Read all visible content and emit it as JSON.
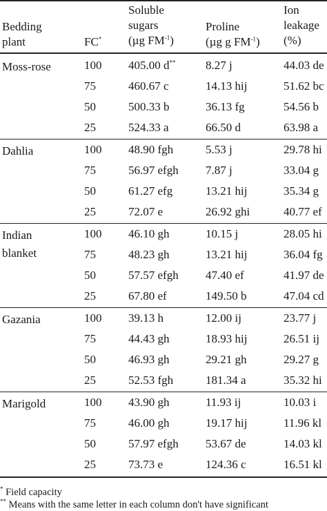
{
  "header": {
    "plant": [
      "Bedding",
      "plant"
    ],
    "fc": "FC",
    "fc_mark": "*",
    "sugars": [
      "Soluble",
      "sugars",
      "(µg FM",
      "-1",
      ")"
    ],
    "proline": [
      "Proline",
      "(µg g FM",
      "-1",
      ")"
    ],
    "ion": [
      "Ion",
      "leakage",
      "(%)"
    ]
  },
  "groups": [
    {
      "plant": [
        "Moss-rose"
      ],
      "rows": [
        {
          "fc": "100",
          "sugars": "405.00 d",
          "sugars_mark": "**",
          "proline": "8.27 j",
          "ion": "44.03 de"
        },
        {
          "fc": "75",
          "sugars": "460.67 c",
          "sugars_mark": "",
          "proline": "14.13 hij",
          "ion": "51.62 bc"
        },
        {
          "fc": "50",
          "sugars": "500.33 b",
          "sugars_mark": "",
          "proline": "36.13 fg",
          "ion": "54.56 b"
        },
        {
          "fc": "25",
          "sugars": "524.33 a",
          "sugars_mark": "",
          "proline": "66.50 d",
          "ion": "63.98 a"
        }
      ]
    },
    {
      "plant": [
        "Dahlia"
      ],
      "rows": [
        {
          "fc": "100",
          "sugars": "48.90 fgh",
          "sugars_mark": "",
          "proline": "5.53 j",
          "ion": "29.78 hi"
        },
        {
          "fc": "75",
          "sugars": "56.97 efgh",
          "sugars_mark": "",
          "proline": "7.87 j",
          "ion": "33.04 g"
        },
        {
          "fc": "50",
          "sugars": "61.27 efg",
          "sugars_mark": "",
          "proline": "13.21  hij",
          "ion": "35.34 g"
        },
        {
          "fc": "25",
          "sugars": "72.07 e",
          "sugars_mark": "",
          "proline": "26.92 ghi",
          "ion": "40.77 ef"
        }
      ]
    },
    {
      "plant": [
        "Indian",
        "blanket"
      ],
      "rows": [
        {
          "fc": "100",
          "sugars": "46.10 gh",
          "sugars_mark": "",
          "proline": "10.15 j",
          "ion": "28.05 hi"
        },
        {
          "fc": "75",
          "sugars": "48.23 gh",
          "sugars_mark": "",
          "proline": "13.21 hij",
          "ion": "36.04 fg"
        },
        {
          "fc": "50",
          "sugars": "57.57 efgh",
          "sugars_mark": "",
          "proline": "47.40 ef",
          "ion": "41.97 de"
        },
        {
          "fc": "25",
          "sugars": "67.80 ef",
          "sugars_mark": "",
          "proline": "149.50 b",
          "ion": "47.04 cd"
        }
      ]
    },
    {
      "plant": [
        "Gazania"
      ],
      "rows": [
        {
          "fc": "100",
          "sugars": "39.13 h",
          "sugars_mark": "",
          "proline": "12.00 ij",
          "ion": "23.77 j"
        },
        {
          "fc": "75",
          "sugars": "44.43 gh",
          "sugars_mark": "",
          "proline": "18.93 hij",
          "ion": "26.51 ij"
        },
        {
          "fc": "50",
          "sugars": "46.93 gh",
          "sugars_mark": "",
          "proline": "29.21 gh",
          "ion": "29.27 g"
        },
        {
          "fc": "25",
          "sugars": "52.53 fgh",
          "sugars_mark": "",
          "proline": "181.34 a",
          "ion": "35.32 hi"
        }
      ]
    },
    {
      "plant": [
        "Marigold"
      ],
      "rows": [
        {
          "fc": "100",
          "sugars": "43.90 gh",
          "sugars_mark": "",
          "proline": "11.93 ij",
          "ion": "10.03 i"
        },
        {
          "fc": "75",
          "sugars": "46.00 gh",
          "sugars_mark": "",
          "proline": "19.17 hij",
          "ion": "11.96 kl"
        },
        {
          "fc": "50",
          "sugars": "57.97 efgh",
          "sugars_mark": "",
          "proline": "53.67 de",
          "ion": "14.03 kl"
        },
        {
          "fc": "25",
          "sugars": "73.73 e",
          "sugars_mark": "",
          "proline": "124.36 c",
          "ion": "16.51 kl"
        }
      ]
    }
  ],
  "footnotes": [
    {
      "mark": "*",
      "text": " Field capacity"
    },
    {
      "mark": "**",
      "text": " Means with the same letter in each column don't have significant"
    }
  ]
}
